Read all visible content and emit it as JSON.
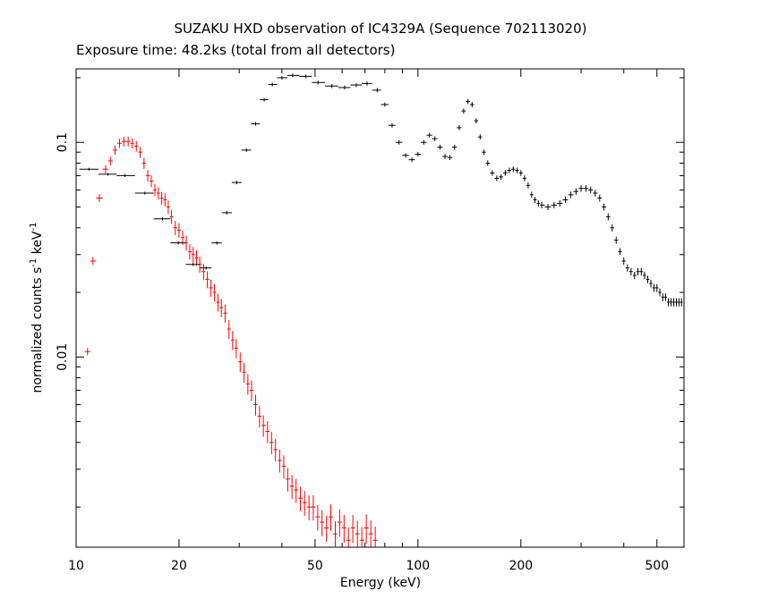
{
  "chart_data": {
    "type": "scatter",
    "title": "SUZAKU HXD observation of IC4329A (Sequence 702113020)",
    "subtitle": "Exposure time: 48.2ks (total from all detectors)",
    "xlabel": "Energy (keV)",
    "ylabel_main": "normalized counts s",
    "ylabel_exp1": "-1",
    "ylabel_mid": " keV",
    "ylabel_exp2": "-1",
    "x_scale": "log",
    "y_scale": "log",
    "xlim": [
      10,
      600
    ],
    "ylim": [
      0.0013,
      0.22
    ],
    "x_ticks": [
      {
        "value": 10,
        "label": "10"
      },
      {
        "value": 20,
        "label": "20"
      },
      {
        "value": 50,
        "label": "50"
      },
      {
        "value": 100,
        "label": "100"
      },
      {
        "value": 200,
        "label": "200"
      },
      {
        "value": 500,
        "label": "500"
      }
    ],
    "y_ticks": [
      {
        "value": 0.01,
        "label": "0.01"
      },
      {
        "value": 0.1,
        "label": "0.1"
      }
    ],
    "grid": false,
    "series": [
      {
        "color": "#ff0000",
        "x": [
          10.8,
          11.2,
          11.7,
          12.2,
          12.6,
          13.0,
          13.4,
          13.8,
          14.2,
          14.6,
          15.0,
          15.4,
          15.8,
          16.2,
          16.6,
          17.0,
          17.4,
          17.8,
          18.2,
          18.6,
          19.0,
          19.5,
          20.0,
          20.5,
          21.0,
          21.5,
          22.0,
          22.5,
          23.0,
          23.6,
          24.2,
          24.8,
          25.4,
          26.0,
          26.6,
          27.3,
          28.0,
          28.7,
          29.4,
          30.2,
          31.0,
          31.8,
          32.6,
          33.5,
          34.4,
          35.3,
          36.3,
          37.3,
          38.3,
          39.4,
          40.5,
          41.6,
          42.8,
          44.0,
          45.3,
          46.6,
          48.0,
          49.4,
          50.9,
          52.4,
          54.0,
          55.6,
          57.3,
          59.0,
          60.8,
          62.6,
          64.5,
          66.5,
          68.5,
          70.6,
          72.8,
          75.0
        ],
        "y": [
          0.0106,
          0.028,
          0.055,
          0.075,
          0.082,
          0.092,
          0.099,
          0.101,
          0.101,
          0.099,
          0.096,
          0.09,
          0.08,
          0.07,
          0.066,
          0.06,
          0.058,
          0.055,
          0.054,
          0.05,
          0.045,
          0.04,
          0.039,
          0.036,
          0.034,
          0.031,
          0.03,
          0.029,
          0.027,
          0.025,
          0.023,
          0.021,
          0.02,
          0.018,
          0.017,
          0.016,
          0.0135,
          0.012,
          0.011,
          0.0095,
          0.0085,
          0.0075,
          0.007,
          0.006,
          0.0053,
          0.0048,
          0.0045,
          0.004,
          0.0037,
          0.0033,
          0.0031,
          0.0027,
          0.0025,
          0.0024,
          0.0022,
          0.0021,
          0.002,
          0.002,
          0.0018,
          0.0017,
          0.0016,
          0.0018,
          0.0015,
          0.0017,
          0.0016,
          0.0014,
          0.0016,
          0.0015,
          0.0014,
          0.0016,
          0.0015,
          0.0014
        ]
      },
      {
        "color": "#000000",
        "x": [
          10.9,
          12.4,
          13.9,
          15.9,
          17.9,
          19.9,
          22.0,
          24.0,
          25.8,
          27.6,
          29.5,
          31.5,
          33.5,
          35.5,
          37.5,
          40,
          43,
          47,
          51,
          56,
          61,
          66,
          71,
          76,
          80,
          84,
          88,
          92,
          96,
          100,
          104,
          108,
          112,
          116,
          120,
          124,
          128,
          132,
          136,
          140,
          144,
          148,
          152,
          156,
          160,
          165,
          170,
          175,
          180,
          185,
          190,
          195,
          200,
          205,
          210,
          215,
          220,
          225,
          230,
          240,
          250,
          260,
          270,
          280,
          290,
          300,
          310,
          320,
          330,
          340,
          350,
          360,
          370,
          380,
          390,
          400,
          410,
          420,
          430,
          440,
          450,
          460,
          470,
          480,
          490,
          500,
          510,
          520,
          530,
          540,
          550,
          560,
          570,
          580,
          590
        ],
        "y": [
          0.075,
          0.071,
          0.07,
          0.058,
          0.044,
          0.034,
          0.027,
          0.026,
          0.034,
          0.047,
          0.065,
          0.092,
          0.122,
          0.158,
          0.186,
          0.2,
          0.205,
          0.203,
          0.19,
          0.183,
          0.18,
          0.185,
          0.188,
          0.175,
          0.15,
          0.12,
          0.1,
          0.087,
          0.083,
          0.088,
          0.1,
          0.108,
          0.104,
          0.095,
          0.086,
          0.085,
          0.095,
          0.117,
          0.14,
          0.155,
          0.15,
          0.126,
          0.106,
          0.09,
          0.08,
          0.072,
          0.068,
          0.069,
          0.072,
          0.074,
          0.075,
          0.074,
          0.072,
          0.068,
          0.063,
          0.057,
          0.054,
          0.052,
          0.051,
          0.05,
          0.051,
          0.052,
          0.054,
          0.057,
          0.059,
          0.061,
          0.061,
          0.06,
          0.058,
          0.055,
          0.05,
          0.045,
          0.04,
          0.035,
          0.031,
          0.028,
          0.026,
          0.025,
          0.024,
          0.025,
          0.025,
          0.024,
          0.023,
          0.022,
          0.021,
          0.021,
          0.02,
          0.019,
          0.019,
          0.018,
          0.018,
          0.018,
          0.018,
          0.018,
          0.018
        ]
      }
    ]
  }
}
